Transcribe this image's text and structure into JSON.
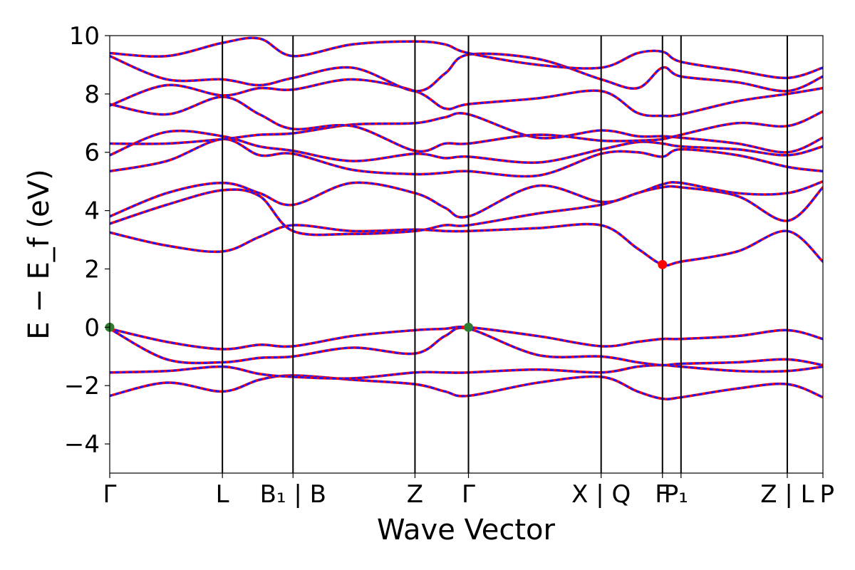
{
  "chart_data": {
    "type": "line",
    "title": "",
    "xlabel": "Wave Vector",
    "ylabel": "E − E_f (eV)",
    "ylim": [
      -5,
      10
    ],
    "yticks": [
      -4,
      -2,
      0,
      2,
      4,
      6,
      8,
      10
    ],
    "ytick_labels": [
      "−4",
      "−2",
      "0",
      "2",
      "4",
      "6",
      "8",
      "10"
    ],
    "k_path": [
      {
        "k": 0.0,
        "label": "Γ"
      },
      {
        "k": 1.58,
        "label": "L"
      },
      {
        "k": 2.57,
        "label": "B₁ | B"
      },
      {
        "k": 4.28,
        "label": "Z"
      },
      {
        "k": 5.03,
        "label": "Γ"
      },
      {
        "k": 6.89,
        "label": "X | Q"
      },
      {
        "k": 7.75,
        "label": "F"
      },
      {
        "k": 8.01,
        "label": "P₁"
      },
      {
        "k": 9.5,
        "label": "Z | L"
      },
      {
        "k": 10.0,
        "label": "P"
      }
    ],
    "xlim": [
      0,
      10
    ],
    "series_style": {
      "bands_color": "#ff0000",
      "projected_color": "#1a1aff"
    },
    "markers": [
      {
        "name": "VBM",
        "k": 0.0,
        "E": 0.0,
        "color": "#2e7d32"
      },
      {
        "name": "VBM",
        "k": 5.03,
        "E": 0.0,
        "color": "#2e7d32"
      },
      {
        "name": "CBM",
        "k": 7.75,
        "E": 2.15,
        "color": "#ff0000"
      }
    ],
    "bands": [
      {
        "k": [
          0,
          0.8,
          1.58,
          2.1,
          2.57,
          3.4,
          4.28,
          4.7,
          5.03,
          6.0,
          6.89,
          7.4,
          7.75,
          8.01,
          8.8,
          9.5,
          10.0
        ],
        "E": [
          -2.35,
          -1.9,
          -2.2,
          -1.8,
          -1.65,
          -1.8,
          -1.95,
          -2.2,
          -2.35,
          -1.9,
          -1.7,
          -2.2,
          -2.45,
          -2.4,
          -2.1,
          -1.95,
          -2.4
        ]
      },
      {
        "k": [
          0,
          0.8,
          1.58,
          2.1,
          2.57,
          3.4,
          4.28,
          4.7,
          5.03,
          6.0,
          6.89,
          7.4,
          7.75,
          8.01,
          8.8,
          9.5,
          10.0
        ],
        "E": [
          -1.55,
          -1.5,
          -1.35,
          -1.6,
          -1.7,
          -1.75,
          -1.55,
          -1.55,
          -1.55,
          -1.45,
          -1.55,
          -1.35,
          -1.3,
          -1.35,
          -1.5,
          -1.5,
          -1.35
        ]
      },
      {
        "k": [
          0,
          0.8,
          1.58,
          2.1,
          2.57,
          3.4,
          4.28,
          4.7,
          5.03,
          6.0,
          6.89,
          7.4,
          7.75,
          8.01,
          8.8,
          9.5,
          10.0
        ],
        "E": [
          -0.05,
          -1.1,
          -1.2,
          -1.05,
          -1.0,
          -0.7,
          -0.9,
          -0.3,
          -0.05,
          -0.95,
          -1.0,
          -1.2,
          -1.3,
          -1.25,
          -1.2,
          -1.1,
          -1.3
        ]
      },
      {
        "k": [
          0,
          0.8,
          1.58,
          2.1,
          2.57,
          3.4,
          4.28,
          4.7,
          5.03,
          6.0,
          6.89,
          7.4,
          7.75,
          8.01,
          8.8,
          9.5,
          10.0
        ],
        "E": [
          -0.05,
          -0.5,
          -0.75,
          -0.6,
          -0.65,
          -0.3,
          -0.1,
          -0.05,
          0.0,
          -0.3,
          -0.65,
          -0.5,
          -0.4,
          -0.4,
          -0.3,
          -0.1,
          -0.4
        ]
      },
      {
        "k": [
          0,
          0.8,
          1.58,
          2.1,
          2.57,
          3.4,
          4.28,
          4.7,
          5.03,
          6.0,
          6.89,
          7.4,
          7.75,
          8.01,
          8.8,
          9.5,
          10.0
        ],
        "E": [
          3.25,
          2.8,
          2.6,
          3.1,
          3.5,
          3.3,
          3.35,
          3.3,
          3.3,
          3.4,
          3.5,
          2.7,
          2.15,
          2.25,
          2.6,
          3.3,
          2.25
        ]
      },
      {
        "k": [
          0,
          0.8,
          1.58,
          2.1,
          2.57,
          3.4,
          4.28,
          4.7,
          5.03,
          6.0,
          6.89,
          7.4,
          7.75,
          8.01,
          8.8,
          9.5,
          10.0
        ],
        "E": [
          3.55,
          4.2,
          4.7,
          4.5,
          3.3,
          3.2,
          3.3,
          3.5,
          3.5,
          3.9,
          4.2,
          4.6,
          4.8,
          4.8,
          4.5,
          3.65,
          4.8
        ]
      },
      {
        "k": [
          0,
          0.8,
          1.58,
          2.1,
          2.57,
          3.4,
          4.28,
          4.7,
          5.03,
          6.0,
          6.89,
          7.4,
          7.75,
          8.01,
          8.8,
          9.5,
          10.0
        ],
        "E": [
          3.8,
          4.6,
          4.95,
          4.6,
          4.2,
          4.95,
          4.6,
          4.1,
          3.8,
          4.85,
          4.3,
          4.6,
          4.9,
          4.95,
          4.6,
          4.6,
          5.0
        ]
      },
      {
        "k": [
          0,
          0.8,
          1.58,
          2.1,
          2.57,
          3.4,
          4.28,
          4.7,
          5.03,
          6.0,
          6.89,
          7.4,
          7.75,
          8.01,
          8.8,
          9.5,
          10.0
        ],
        "E": [
          5.35,
          5.7,
          6.45,
          5.9,
          5.95,
          5.4,
          5.25,
          5.3,
          5.35,
          5.2,
          5.95,
          6.0,
          5.85,
          6.1,
          5.9,
          5.5,
          5.35
        ]
      },
      {
        "k": [
          0,
          0.8,
          1.58,
          2.1,
          2.57,
          3.4,
          4.28,
          4.7,
          5.03,
          6.0,
          6.89,
          7.4,
          7.75,
          8.01,
          8.8,
          9.5,
          10.0
        ],
        "E": [
          5.9,
          6.7,
          6.55,
          6.2,
          6.05,
          5.7,
          5.95,
          5.8,
          5.85,
          5.65,
          6.1,
          6.35,
          6.3,
          6.2,
          6.1,
          5.9,
          6.2
        ]
      },
      {
        "k": [
          0,
          0.8,
          1.58,
          2.1,
          2.57,
          3.4,
          4.28,
          4.7,
          5.03,
          6.0,
          6.89,
          7.4,
          7.75,
          8.01,
          8.8,
          9.5,
          10.0
        ],
        "E": [
          6.3,
          6.3,
          6.45,
          6.6,
          6.65,
          6.95,
          7.0,
          7.2,
          7.3,
          6.5,
          6.75,
          6.55,
          6.55,
          6.5,
          6.3,
          6.0,
          6.5
        ]
      },
      {
        "k": [
          0,
          0.8,
          1.58,
          2.1,
          2.57,
          3.4,
          4.28,
          4.7,
          5.03,
          6.0,
          6.89,
          7.4,
          7.75,
          8.01,
          8.8,
          9.5,
          10.0
        ],
        "E": [
          7.65,
          7.3,
          7.9,
          7.3,
          6.8,
          6.9,
          6.05,
          6.3,
          6.3,
          6.6,
          6.4,
          6.4,
          6.45,
          6.6,
          7.0,
          6.9,
          7.4
        ]
      },
      {
        "k": [
          0,
          0.8,
          1.58,
          2.1,
          2.57,
          3.4,
          4.28,
          4.7,
          5.03,
          6.0,
          6.89,
          7.4,
          7.75,
          8.01,
          8.8,
          9.5,
          10.0
        ],
        "E": [
          7.6,
          8.3,
          7.95,
          8.2,
          8.15,
          8.5,
          8.1,
          7.5,
          7.65,
          7.85,
          8.1,
          7.35,
          7.25,
          7.3,
          7.75,
          8.0,
          8.2
        ]
      },
      {
        "k": [
          0,
          0.8,
          1.58,
          2.1,
          2.57,
          3.4,
          4.28,
          4.7,
          5.03,
          6.0,
          6.89,
          7.4,
          7.75,
          8.01,
          8.8,
          9.5,
          10.0
        ],
        "E": [
          9.3,
          8.5,
          8.5,
          8.3,
          8.55,
          8.9,
          8.1,
          8.7,
          9.35,
          9.2,
          8.5,
          8.2,
          8.9,
          8.6,
          8.4,
          8.1,
          8.6
        ]
      },
      {
        "k": [
          0,
          0.8,
          1.58,
          2.1,
          2.57,
          3.4,
          4.28,
          4.7,
          5.03,
          6.0,
          6.89,
          7.4,
          7.75,
          8.01,
          8.8,
          9.5,
          10.0
        ],
        "E": [
          9.4,
          9.3,
          9.75,
          9.9,
          9.3,
          9.7,
          9.8,
          9.7,
          9.4,
          9.0,
          8.9,
          9.4,
          9.45,
          9.1,
          8.8,
          8.55,
          8.9
        ]
      }
    ]
  }
}
